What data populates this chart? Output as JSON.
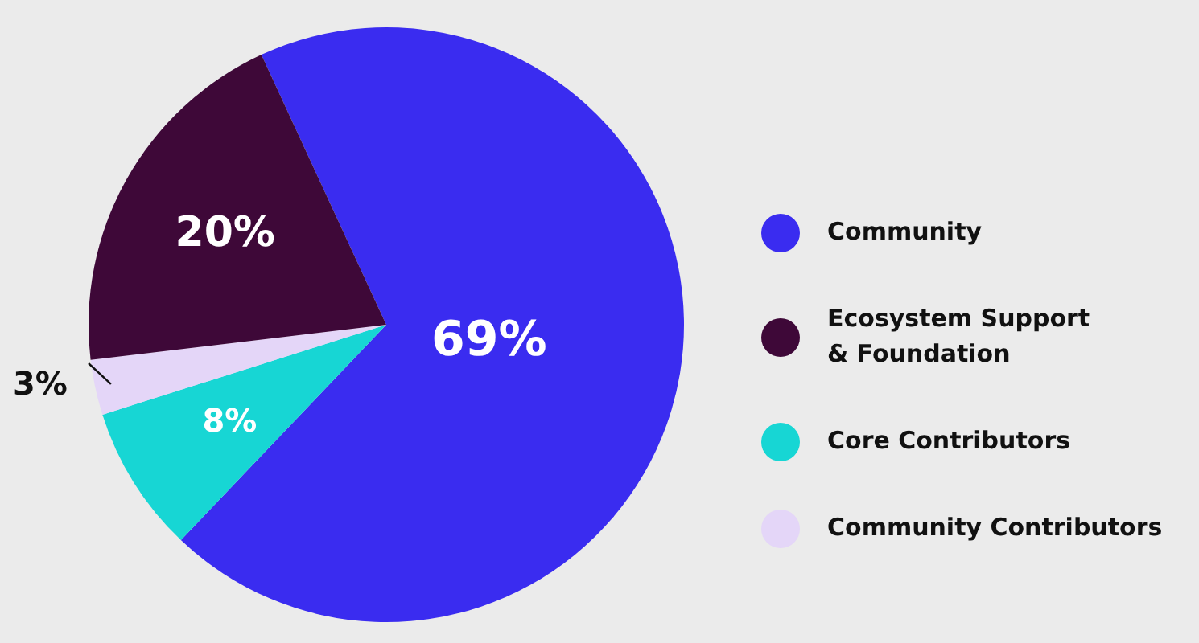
{
  "chart_data": {
    "type": "pie",
    "categories": [
      "Community",
      "Ecosystem Support & Foundation",
      "Core Contributors",
      "Community Contributors"
    ],
    "values": [
      69,
      20,
      8,
      3
    ],
    "colors": [
      "#3a2cf0",
      "#3e0838",
      "#17d6d4",
      "#e4d6f8"
    ],
    "value_labels": [
      "69%",
      "20%",
      "8%",
      "3%"
    ],
    "legend": "right"
  }
}
